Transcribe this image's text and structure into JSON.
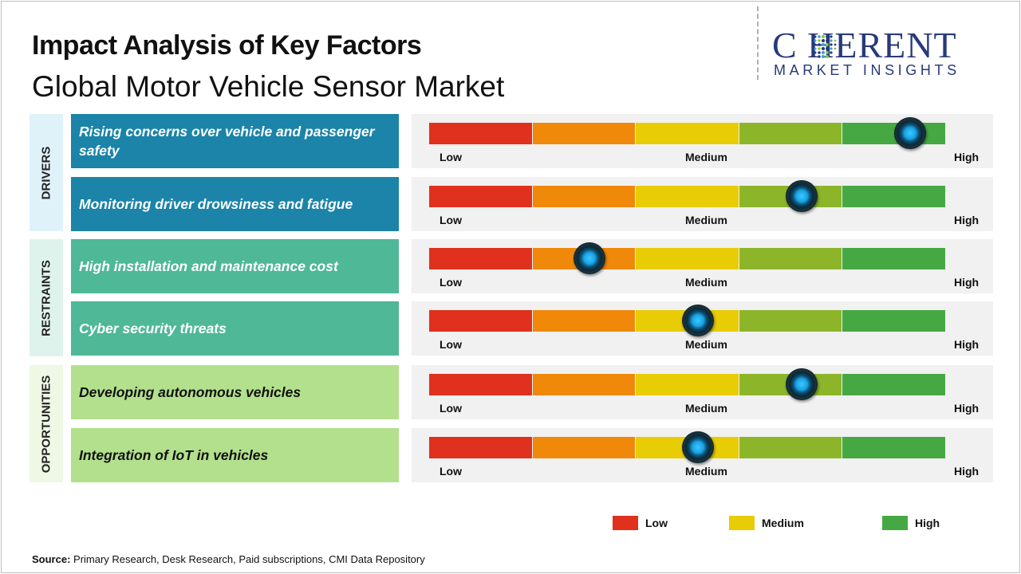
{
  "title": "Impact Analysis of Key Factors",
  "subtitle": "Global Motor Vehicle Sensor Market",
  "logo": {
    "brand": "C    HERENT",
    "tagline": "MARKET INSIGHTS"
  },
  "categories": [
    "DRIVERS",
    "RESTRAINTS",
    "OPPORTUNITIES"
  ],
  "colors": {
    "low": "#e0301e",
    "low_mid": "#f0880a",
    "medium": "#e8cc05",
    "mid_high": "#8db52a",
    "high": "#45a843",
    "drivers_bg": "#1b84a8",
    "restraints_bg": "#4fb896",
    "opportunities_bg": "#b3e08c"
  },
  "scale_labels": {
    "low": "Low",
    "medium": "Medium",
    "high": "High"
  },
  "chart_data": {
    "type": "gauge",
    "scale": [
      "Low",
      "Medium",
      "High"
    ],
    "factors": [
      {
        "category": "DRIVERS",
        "label": "Rising concerns over vehicle and passenger safety",
        "impact": 0.93
      },
      {
        "category": "DRIVERS",
        "label": "Monitoring driver drowsiness and fatigue",
        "impact": 0.72
      },
      {
        "category": "RESTRAINTS",
        "label": "High installation and maintenance cost",
        "impact": 0.31
      },
      {
        "category": "RESTRAINTS",
        "label": "Cyber security threats",
        "impact": 0.52
      },
      {
        "category": "OPPORTUNITIES",
        "label": "Developing autonomous vehicles",
        "impact": 0.72
      },
      {
        "category": "OPPORTUNITIES",
        "label": "Integration of IoT in vehicles",
        "impact": 0.52
      }
    ],
    "legend": [
      {
        "label": "Low",
        "color": "#e0301e"
      },
      {
        "label": "Medium",
        "color": "#e8cc05"
      },
      {
        "label": "High",
        "color": "#45a843"
      }
    ]
  },
  "source": {
    "prefix": "Source:",
    "text": "Primary Research, Desk Research, Paid subscriptions, CMI Data Repository"
  }
}
